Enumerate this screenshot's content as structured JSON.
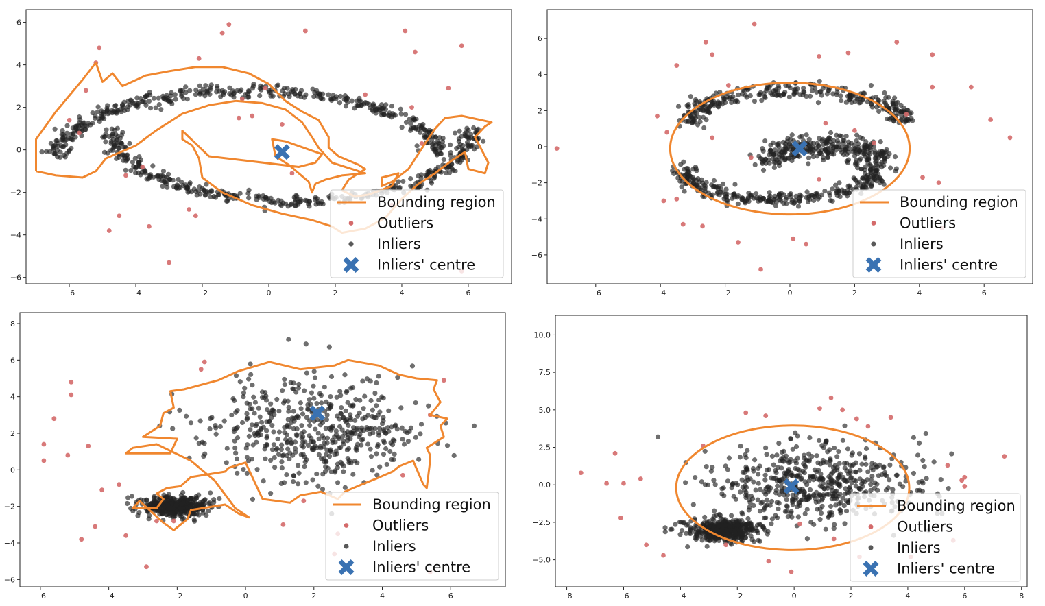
{
  "colors": {
    "outliers": "#d46a6a",
    "inliers": "#222222",
    "centre": "#3a72b2",
    "bounding": "#f0872f"
  },
  "chart_data": [
    {
      "type": "scatter",
      "panel": "top-left",
      "title": "",
      "xlabel": "",
      "ylabel": "",
      "xlim": [
        -7.3,
        7.3
      ],
      "ylim": [
        -6.3,
        6.6
      ],
      "xticks": [
        -6,
        -4,
        -2,
        0,
        2,
        4,
        6
      ],
      "yticks": [
        -6,
        -4,
        -2,
        0,
        2,
        4,
        6
      ],
      "xtick_labels": [
        "−6",
        "−4",
        "−2",
        "0",
        "2",
        "4",
        "6"
      ],
      "ytick_labels": [
        "−6",
        "−4",
        "−2",
        "0",
        "2",
        "4",
        "6"
      ],
      "inlier_model": {
        "shape": "two-moons",
        "count": 820
      },
      "centre": [
        0.4,
        -0.1
      ],
      "bounding_region": [
        [
          -7,
          -1
        ],
        [
          -6.4,
          -1.2
        ],
        [
          -5.6,
          -1.3
        ],
        [
          -5.2,
          -1
        ],
        [
          -4.9,
          -0.4
        ],
        [
          -4,
          0.2
        ],
        [
          -3.4,
          0.9
        ],
        [
          -2.6,
          1.7
        ],
        [
          -1.8,
          2.1
        ],
        [
          -1,
          2.3
        ],
        [
          -0.2,
          2.2
        ],
        [
          0.5,
          1.9
        ],
        [
          1,
          1.3
        ],
        [
          1.3,
          0.6
        ],
        [
          1.5,
          0.1
        ],
        [
          1.9,
          -0.6
        ],
        [
          2.5,
          -0.9
        ],
        [
          2.9,
          -1.1
        ],
        [
          2.2,
          -1.2
        ],
        [
          1.7,
          -1.4
        ],
        [
          1.4,
          -1.6
        ],
        [
          1.3,
          -2
        ],
        [
          1.2,
          -1.5
        ],
        [
          0.6,
          -0.7
        ],
        [
          0.2,
          -0.3
        ],
        [
          0.1,
          0.5
        ],
        [
          0.5,
          0.4
        ],
        [
          1.6,
          -0.2
        ],
        [
          1.4,
          -0.6
        ],
        [
          0.9,
          -0.8
        ],
        [
          -0.7,
          -0.5
        ],
        [
          -1.8,
          -0.3
        ],
        [
          -2.6,
          0.9
        ],
        [
          -2.6,
          0.5
        ],
        [
          -2.3,
          0.2
        ],
        [
          -2.1,
          -0.4
        ],
        [
          -2,
          -1.3
        ],
        [
          -1.4,
          -2
        ],
        [
          -0.5,
          -2.6
        ],
        [
          0.4,
          -3
        ],
        [
          1.3,
          -3.3
        ],
        [
          1.9,
          -3.6
        ],
        [
          2.2,
          -3.9
        ],
        [
          2.9,
          -3.7
        ],
        [
          3.5,
          -3.2
        ],
        [
          4,
          -2.3
        ],
        [
          4.5,
          -1.6
        ],
        [
          5,
          -1.1
        ],
        [
          5.5,
          -0.5
        ],
        [
          5.9,
          -0.1
        ],
        [
          6,
          -0.9
        ],
        [
          6.5,
          -1.1
        ],
        [
          6.6,
          -0.6
        ],
        [
          6.2,
          0.6
        ],
        [
          6.5,
          1.1
        ],
        [
          6.7,
          1.3
        ],
        [
          5.8,
          1.6
        ],
        [
          5.3,
          1.5
        ],
        [
          5,
          1
        ],
        [
          4.7,
          0.3
        ],
        [
          4.2,
          -0.9
        ],
        [
          3.7,
          -1.5
        ],
        [
          3.4,
          -1.7
        ],
        [
          3.4,
          -1.3
        ],
        [
          3.9,
          -1.1
        ],
        [
          3.7,
          -1.7
        ],
        [
          3,
          -2.1
        ],
        [
          2.6,
          -2.2
        ],
        [
          2.2,
          -1.9
        ],
        [
          2.4,
          -1.4
        ],
        [
          2.9,
          -0.9
        ],
        [
          2.7,
          -0.7
        ],
        [
          2.1,
          -0.3
        ],
        [
          1.8,
          0.1
        ],
        [
          1.8,
          0.6
        ],
        [
          1.5,
          1.4
        ],
        [
          1,
          1.8
        ],
        [
          0.5,
          2.3
        ],
        [
          0,
          3.1
        ],
        [
          -0.6,
          3.6
        ],
        [
          -1.4,
          3.9
        ],
        [
          -2.2,
          3.9
        ],
        [
          -3,
          3.7
        ],
        [
          -3.7,
          3.5
        ],
        [
          -4.4,
          3
        ],
        [
          -4.7,
          3.6
        ],
        [
          -5,
          3.2
        ],
        [
          -5.2,
          4.1
        ],
        [
          -5.6,
          3.3
        ],
        [
          -6.4,
          1.8
        ],
        [
          -7,
          0.5
        ],
        [
          -7,
          -1
        ]
      ],
      "outliers": [
        [
          -1.2,
          5.9
        ],
        [
          -1.4,
          5.5
        ],
        [
          1.1,
          5.6
        ],
        [
          4.1,
          5.6
        ],
        [
          4.4,
          4.6
        ],
        [
          5.8,
          4.9
        ],
        [
          -5.1,
          4.8
        ],
        [
          -5.2,
          4.1
        ],
        [
          -2.1,
          4.3
        ],
        [
          -0.1,
          2.9
        ],
        [
          -5.5,
          2.8
        ],
        [
          -0.8,
          2.4
        ],
        [
          2.9,
          2.6
        ],
        [
          5.4,
          2.9
        ],
        [
          4.3,
          2
        ],
        [
          -6,
          1.4
        ],
        [
          -0.5,
          1.6
        ],
        [
          -0.9,
          1.5
        ],
        [
          0.4,
          1.2
        ],
        [
          4.6,
          0.3
        ],
        [
          -5.7,
          0.8
        ],
        [
          -3.8,
          -0.8
        ],
        [
          -4.3,
          -1.2
        ],
        [
          -4.5,
          -3.1
        ],
        [
          -4.8,
          -3.8
        ],
        [
          -3.6,
          -3.6
        ],
        [
          -2.4,
          -2.8
        ],
        [
          -2.2,
          -3.1
        ],
        [
          -3,
          -5.3
        ],
        [
          0.7,
          -1.1
        ],
        [
          3.7,
          -2.6
        ],
        [
          5.8,
          -5.7
        ]
      ]
    },
    {
      "type": "scatter",
      "panel": "top-right",
      "title": "",
      "xlabel": "",
      "ylabel": "",
      "xlim": [
        -7.5,
        7.5
      ],
      "ylim": [
        -7.6,
        7.6
      ],
      "xticks": [
        -6,
        -4,
        -2,
        0,
        2,
        4,
        6
      ],
      "yticks": [
        -6,
        -4,
        -2,
        0,
        2,
        4,
        6
      ],
      "xtick_labels": [
        "−6",
        "−4",
        "−2",
        "0",
        "2",
        "4",
        "6"
      ],
      "ytick_labels": [
        "−6",
        "−4",
        "−2",
        "0",
        "2",
        "4",
        "6"
      ],
      "inlier_model": {
        "shape": "two-moons-band",
        "count": 900
      },
      "centre": [
        0.3,
        -0.1
      ],
      "bounding_ellipse": {
        "cx": 0,
        "cy": -0.1,
        "rx": 3.7,
        "ry": 3.65
      },
      "outliers": [
        [
          -1.1,
          6.8
        ],
        [
          -2.6,
          5.8
        ],
        [
          -2.4,
          5.1
        ],
        [
          -3.5,
          4.5
        ],
        [
          -3.8,
          0.8
        ],
        [
          -4.1,
          1.7
        ],
        [
          -7.2,
          -0.1
        ],
        [
          -3.9,
          -3
        ],
        [
          -3.5,
          -2.9
        ],
        [
          -3.3,
          -4.3
        ],
        [
          -2.7,
          -4.4
        ],
        [
          -1.6,
          -5.3
        ],
        [
          -0.9,
          -6.8
        ],
        [
          0.1,
          -5.1
        ],
        [
          0.5,
          -5.4
        ],
        [
          0.9,
          5
        ],
        [
          1.8,
          5.2
        ],
        [
          3.3,
          5.8
        ],
        [
          4.4,
          5.1
        ],
        [
          5.6,
          3.3
        ],
        [
          6.2,
          1.5
        ],
        [
          6.8,
          0.5
        ],
        [
          4.4,
          3.3
        ],
        [
          3.6,
          1.8
        ],
        [
          -1.9,
          3.4
        ],
        [
          4.1,
          -1.7
        ],
        [
          4.6,
          -2
        ],
        [
          4.7,
          -4.5
        ],
        [
          -2.4,
          0.5
        ],
        [
          1.1,
          1.3
        ],
        [
          2,
          0.9
        ],
        [
          -1.2,
          -0.6
        ],
        [
          0.9,
          -1.8
        ],
        [
          2.6,
          0.2
        ]
      ]
    },
    {
      "type": "scatter",
      "panel": "bottom-left",
      "title": "",
      "xlabel": "",
      "ylabel": "",
      "xlim": [
        -6.6,
        7.6
      ],
      "ylim": [
        -6.4,
        8.6
      ],
      "xticks": [
        -6,
        -4,
        -2,
        0,
        2,
        4,
        6
      ],
      "yticks": [
        -6,
        -4,
        -2,
        0,
        2,
        4,
        6,
        8
      ],
      "xtick_labels": [
        "−6",
        "−4",
        "−2",
        "0",
        "2",
        "4",
        "6"
      ],
      "ytick_labels": [
        "−6",
        "−4",
        "−2",
        "0",
        "2",
        "4",
        "6",
        "8"
      ],
      "inlier_model": {
        "shape": "blobs",
        "count": 900,
        "blob1": {
          "cx": 2.1,
          "cy": 2.2,
          "sd": 1.5
        },
        "blob2": {
          "cx": -2.1,
          "cy": -2,
          "sd": 0.3
        }
      },
      "centre": [
        2.1,
        3.1
      ],
      "bounding_region": [
        [
          -1.8,
          4.4
        ],
        [
          -0.8,
          4.9
        ],
        [
          -0.2,
          5.4
        ],
        [
          0.7,
          5.9
        ],
        [
          1.6,
          5.5
        ],
        [
          2.6,
          5.7
        ],
        [
          3,
          6
        ],
        [
          3.9,
          5.7
        ],
        [
          4.5,
          5.2
        ],
        [
          5,
          5
        ],
        [
          5.6,
          4.9
        ],
        [
          5.5,
          4.4
        ],
        [
          5.7,
          3.7
        ],
        [
          5.4,
          3
        ],
        [
          5.9,
          2.8
        ],
        [
          5.7,
          2.4
        ],
        [
          5.8,
          1.8
        ],
        [
          5.3,
          1.2
        ],
        [
          5.4,
          0.8
        ],
        [
          5.4,
          0.5
        ],
        [
          5.3,
          -1
        ],
        [
          5.2,
          -0.8
        ],
        [
          4.9,
          0.5
        ],
        [
          4.5,
          0.2
        ],
        [
          4.3,
          -0.1
        ],
        [
          3.8,
          -0.5
        ],
        [
          3.4,
          -0.8
        ],
        [
          2.9,
          -1.2
        ],
        [
          2.7,
          -1.6
        ],
        [
          2.2,
          -1.2
        ],
        [
          1.6,
          -1.4
        ],
        [
          1.3,
          -1.8
        ],
        [
          0.5,
          -1.6
        ],
        [
          0.3,
          -0.8
        ],
        [
          0,
          0.4
        ],
        [
          -0.5,
          0.1
        ],
        [
          -0.6,
          -0.1
        ],
        [
          -1.6,
          -0.4
        ],
        [
          -1.9,
          -0.9
        ],
        [
          -2.3,
          -1
        ],
        [
          -2.6,
          -1.3
        ],
        [
          -2.4,
          -1.6
        ],
        [
          -2.6,
          -2.1
        ],
        [
          -3.3,
          -2.1
        ],
        [
          -3.1,
          -1.7
        ],
        [
          -2.4,
          -2.9
        ],
        [
          -2.1,
          -3.3
        ],
        [
          -1.7,
          -2.7
        ],
        [
          -1.6,
          -2.2
        ],
        [
          -0.6,
          -1.9
        ],
        [
          -0.2,
          -2.4
        ],
        [
          0.1,
          -2.6
        ],
        [
          -0.3,
          -2.1
        ],
        [
          -0.9,
          -0.6
        ],
        [
          -1.6,
          0.5
        ],
        [
          -2.6,
          1.4
        ],
        [
          -3.3,
          1.2
        ],
        [
          -3.5,
          0.9
        ],
        [
          -2.2,
          0.9
        ],
        [
          -2,
          1.7
        ],
        [
          -3,
          1.8
        ],
        [
          -2.5,
          2.4
        ],
        [
          -2.4,
          3.1
        ],
        [
          -2.1,
          3.4
        ],
        [
          -2.2,
          4.3
        ],
        [
          -1.8,
          4.4
        ]
      ],
      "outliers": [
        [
          -5.9,
          1.4
        ],
        [
          -5.9,
          0.5
        ],
        [
          -5.6,
          2.8
        ],
        [
          -5.1,
          4.8
        ],
        [
          -5.1,
          4.1
        ],
        [
          -5.2,
          0.8
        ],
        [
          -4.6,
          1.3
        ],
        [
          -4.2,
          -1.1
        ],
        [
          -4.4,
          -3.1
        ],
        [
          -3.7,
          -0.8
        ],
        [
          -3.5,
          -3.6
        ],
        [
          -4.8,
          -3.8
        ],
        [
          -2.9,
          -5.3
        ],
        [
          -1.3,
          5.5
        ],
        [
          -1.2,
          5.9
        ],
        [
          -2.6,
          -2.8
        ],
        [
          -2.1,
          -2.8
        ],
        [
          1.1,
          -3
        ],
        [
          1.7,
          -1.7
        ],
        [
          2.7,
          -3.5
        ],
        [
          5.8,
          4.9
        ],
        [
          5.4,
          3
        ],
        [
          4.6,
          -0.3
        ],
        [
          5.4,
          -5.6
        ],
        [
          2.6,
          -4.6
        ]
      ]
    },
    {
      "type": "scatter",
      "panel": "bottom-right",
      "title": "",
      "xlabel": "",
      "ylabel": "",
      "xlim": [
        -8.4,
        8.2
      ],
      "ylim": [
        -6.8,
        11.3
      ],
      "xticks": [
        -8,
        -6,
        -4,
        -2,
        0,
        2,
        4,
        6,
        8
      ],
      "yticks": [
        -5,
        -2.5,
        0,
        2.5,
        5,
        7.5,
        10
      ],
      "xtick_labels": [
        "−8",
        "−6",
        "−4",
        "−2",
        "0",
        "2",
        "4",
        "6",
        "8"
      ],
      "ytick_labels": [
        "−5.0",
        "−2.5",
        "0.0",
        "2.5",
        "5.0",
        "7.5",
        "10.0"
      ],
      "inlier_model": {
        "shape": "blob-plus-dense",
        "count": 1000,
        "blob1": {
          "cx": 0.7,
          "cy": 0.1,
          "sd": 1.6
        },
        "blob2": {
          "cx": -2.5,
          "cy": -3,
          "sd": 0.4
        }
      },
      "centre": [
        -0.1,
        -0.1
      ],
      "bounding_ellipse": {
        "cx": -0.05,
        "cy": -0.2,
        "rx": 4.1,
        "ry": 4.15
      },
      "outliers": [
        [
          -7.5,
          0.8
        ],
        [
          -6.6,
          0.1
        ],
        [
          -6.3,
          2.1
        ],
        [
          -6.1,
          -2.2
        ],
        [
          -6,
          0.1
        ],
        [
          -5.4,
          0.4
        ],
        [
          -5.2,
          -4
        ],
        [
          -4.6,
          -4.7
        ],
        [
          -3.2,
          2.6
        ],
        [
          -1.7,
          4.8
        ],
        [
          -1,
          4.6
        ],
        [
          -0.9,
          -5.1
        ],
        [
          -0.1,
          -5.8
        ],
        [
          0.9,
          5.1
        ],
        [
          1.3,
          5.8
        ],
        [
          1.7,
          5
        ],
        [
          2.2,
          4.4
        ],
        [
          2.6,
          3.9
        ],
        [
          3.4,
          4.5
        ],
        [
          7.4,
          1.9
        ],
        [
          5.4,
          1.3
        ],
        [
          5.9,
          0.3
        ],
        [
          6,
          0.5
        ],
        [
          6,
          -0.1
        ],
        [
          5.6,
          -3.7
        ],
        [
          4.1,
          -4.8
        ],
        [
          2.3,
          -4.8
        ],
        [
          1.4,
          -3.6
        ],
        [
          0.2,
          -2.6
        ],
        [
          -2.4,
          -4
        ]
      ]
    }
  ],
  "legend": {
    "bounding": "Bounding region",
    "outliers": "Outliers",
    "inliers": "Inliers",
    "centre": "Inliers' centre"
  }
}
